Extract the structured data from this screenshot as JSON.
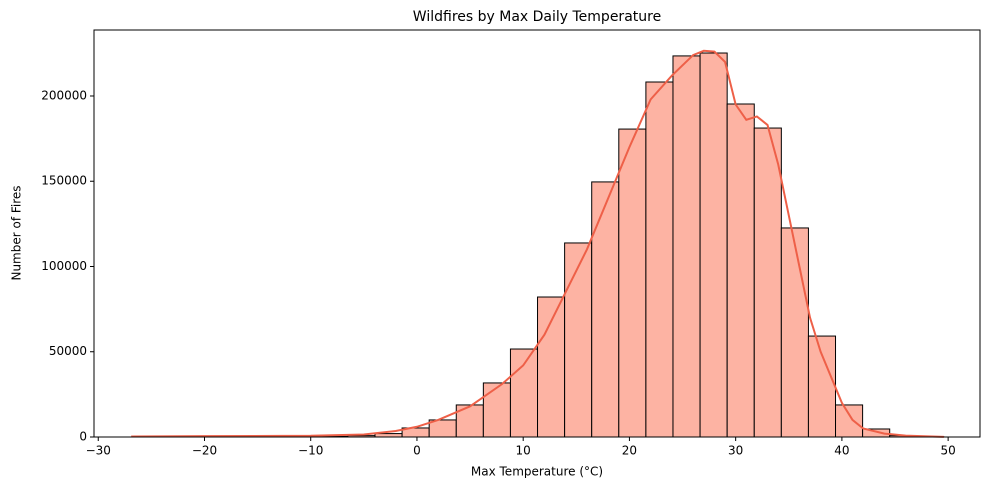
{
  "chart_data": {
    "type": "histogram",
    "title": "Wildfires by Max Daily Temperature",
    "x_label": "Max Temperature (°C)",
    "y_label": "Number of Fires",
    "bins": [
      -26.9,
      -24.35,
      -21.8,
      -19.25,
      -16.7,
      -14.15,
      -11.6,
      -9.05,
      -6.5,
      -3.95,
      -1.4,
      1.15,
      3.7,
      6.25,
      8.8,
      11.35,
      13.9,
      16.45,
      19.0,
      21.55,
      24.1,
      26.65,
      29.2,
      31.75,
      34.3,
      36.85,
      39.4,
      41.95,
      44.5,
      47.05,
      49.6
    ],
    "values": [
      5,
      10,
      20,
      30,
      50,
      100,
      200,
      400,
      800,
      2000,
      5300,
      10000,
      18800,
      31700,
      51600,
      82100,
      113800,
      149600,
      180600,
      208200,
      223500,
      225200,
      195300,
      181200,
      122600,
      59200,
      18800,
      4700,
      800,
      100
    ],
    "color": "#fdb3a3",
    "edgecolor": "#000000",
    "kde": {
      "x": [
        -26.9,
        -20,
        -10,
        -5,
        -2,
        0,
        2,
        5,
        8,
        10,
        12,
        14,
        16,
        18,
        20,
        22,
        24,
        26,
        27,
        28,
        29,
        30,
        31,
        32,
        33,
        34,
        35,
        36,
        37,
        38,
        39,
        40,
        41,
        42,
        44,
        46,
        49.6
      ],
      "values": [
        300,
        500,
        700,
        1500,
        3500,
        6000,
        10000,
        18000,
        31000,
        42000,
        60000,
        85000,
        110000,
        140000,
        170000,
        198000,
        212000,
        224000,
        226500,
        226000,
        220000,
        195000,
        186000,
        188000,
        183000,
        160000,
        130000,
        100000,
        70000,
        50000,
        35000,
        20000,
        10000,
        5000,
        2000,
        800,
        100
      ],
      "color": "#ee6048"
    },
    "xlim": [
      -30.4,
      53.0
    ],
    "ylim": [
      0,
      238700
    ],
    "xticks": [
      {
        "value": -30,
        "label": "−30"
      },
      {
        "value": -20,
        "label": "−20"
      },
      {
        "value": -10,
        "label": "−10"
      },
      0,
      10,
      20,
      30,
      40,
      50
    ],
    "yticks": [
      0,
      50000,
      100000,
      150000,
      200000
    ]
  }
}
